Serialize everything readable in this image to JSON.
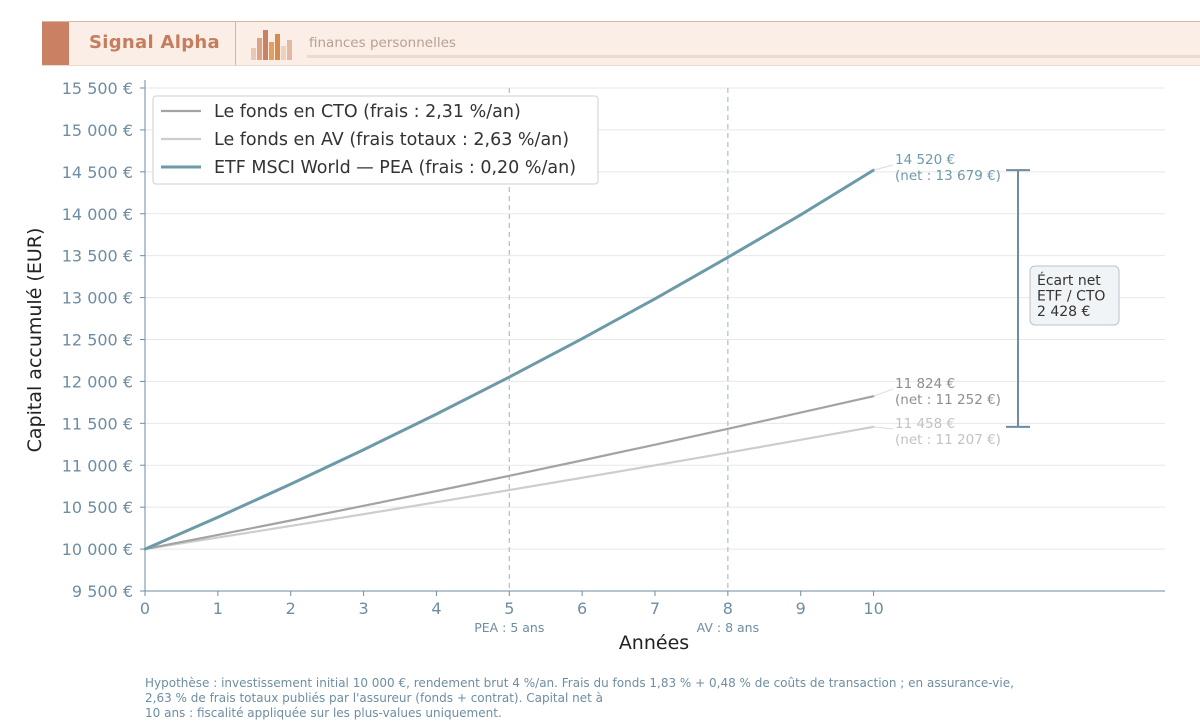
{
  "banner": {
    "brand": "Signal Alpha",
    "tagline": "finances personnelles",
    "colors": {
      "brand": "#c57d5e",
      "band": "#faeee6"
    }
  },
  "chart_data": {
    "type": "line",
    "xlabel": "Années",
    "ylabel": "Capital accumulé (EUR)",
    "xlim": [
      0,
      10
    ],
    "ylim": [
      9500,
      15500
    ],
    "x_ticks": [
      0,
      1,
      2,
      3,
      4,
      5,
      6,
      7,
      8,
      9,
      10
    ],
    "y_ticks": [
      9500,
      10000,
      10500,
      11000,
      11500,
      12000,
      12500,
      13000,
      13500,
      14000,
      14500,
      15000,
      15500
    ],
    "y_tick_labels": [
      "9 500 €",
      "10 000 €",
      "10 500 €",
      "11 000 €",
      "11 500 €",
      "12 000 €",
      "12 500 €",
      "13 000 €",
      "13 500 €",
      "14 000 €",
      "14 500 €",
      "15 000 €",
      "15 500 €"
    ],
    "grid": "horizontal",
    "legend_position": "top-left",
    "x": [
      0,
      1,
      2,
      3,
      4,
      5,
      6,
      7,
      8,
      9,
      10
    ],
    "series": [
      {
        "name": "Le fonds en CTO (frais : 2,31 %/an)",
        "color": "#a3a3a3",
        "values": [
          10000,
          10169,
          10341,
          10516,
          10693,
          10874,
          11058,
          11245,
          11435,
          11628,
          11824
        ],
        "end_label": [
          "11 824 €",
          "(net : 11 252 €)"
        ]
      },
      {
        "name": "Le fonds en AV (frais totaux : 2,63 %/an)",
        "color": "#cdcdcd",
        "values": [
          10000,
          10137,
          10276,
          10416,
          10559,
          10704,
          10851,
          10999,
          11150,
          11303,
          11458
        ],
        "end_label": [
          "11 458 €",
          "(net : 11 207 €)"
        ]
      },
      {
        "name": "ETF MSCI World — PEA (frais : 0,20 %/an)",
        "color": "#6c9aa8",
        "values": [
          10000,
          10380,
          10775,
          11185,
          11610,
          12052,
          12510,
          12986,
          13480,
          13987,
          14520
        ],
        "end_label": [
          "14 520 €",
          "(net : 13 679 €)"
        ]
      }
    ],
    "vlines": [
      {
        "x": 5,
        "label": "PEA : 5 ans"
      },
      {
        "x": 8,
        "label": "AV : 8 ans"
      }
    ],
    "gap_annotation": {
      "from": 11458,
      "to": 14520,
      "lines": [
        "Écart net",
        "ETF / CTO",
        "2 428 €"
      ]
    }
  },
  "footnote": [
    "Hypothèse : investissement initial 10 000 €, rendement brut 4 %/an. Frais du fonds 1,83 % + 0,48 % de coûts de transaction ; en assurance-vie,",
    "2,63 % de frais totaux publiés par l'assureur (fonds + contrat). Capital net à",
    "10 ans : fiscalité appliquée sur les plus-values uniquement."
  ]
}
